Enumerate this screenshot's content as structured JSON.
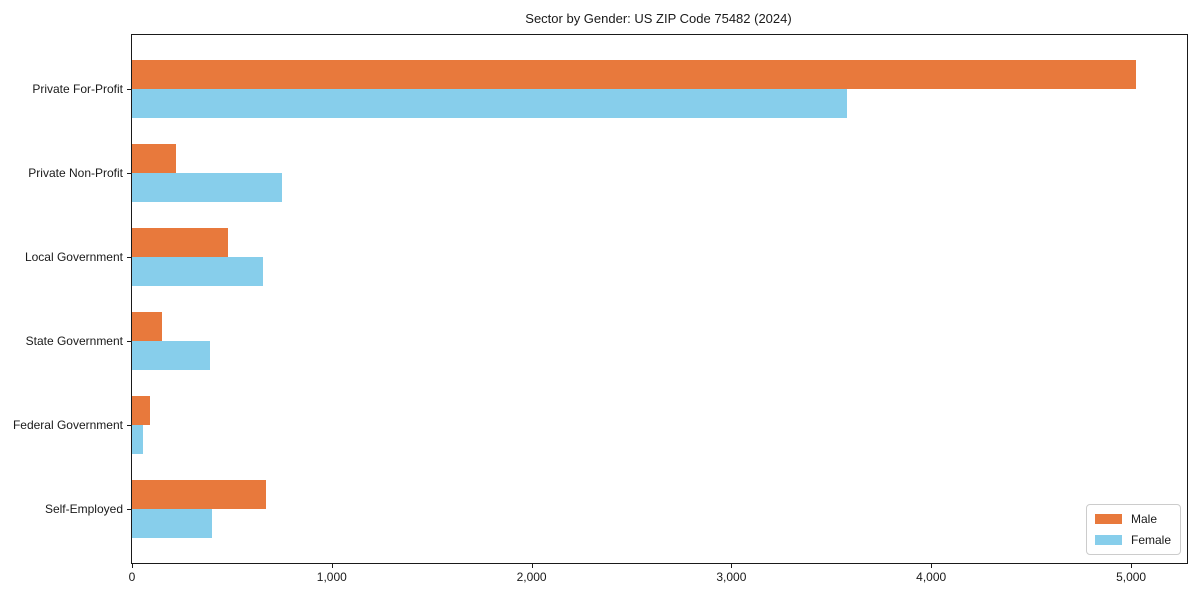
{
  "window": {
    "title": "Sector by Gender: US ZIP Code 75482 (2024)"
  },
  "chart_data": {
    "type": "bar",
    "orientation": "horizontal",
    "title": "Sector by Gender: US ZIP Code 75482 (2024)",
    "categories": [
      "Private For-Profit",
      "Private Non-Profit",
      "Local Government",
      "State Government",
      "Federal Government",
      "Self-Employed"
    ],
    "series": [
      {
        "name": "Male",
        "color": "#E8793C",
        "values": [
          5025,
          220,
          480,
          150,
          90,
          670
        ]
      },
      {
        "name": "Female",
        "color": "#87CEEB",
        "values": [
          3580,
          750,
          655,
          390,
          55,
          400
        ]
      }
    ],
    "xlabel": "",
    "ylabel": "",
    "xlim": [
      0,
      5280
    ],
    "xtick_values": [
      0,
      1000,
      2000,
      3000,
      4000,
      5000
    ],
    "xtick_labels": [
      "0",
      "1,000",
      "2,000",
      "3,000",
      "4,000",
      "5,000"
    ],
    "grid": false,
    "legend": {
      "position": "lower right",
      "entries": [
        "Male",
        "Female"
      ]
    }
  }
}
